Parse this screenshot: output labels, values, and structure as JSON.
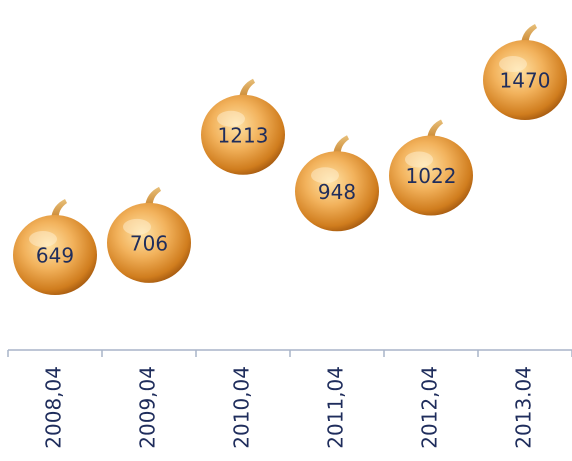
{
  "chart_data": {
    "type": "pictograph",
    "categories": [
      "2008,04",
      "2009,04",
      "2010,04",
      "2011,04",
      "2012,04",
      "2013.04"
    ],
    "values": [
      649,
      706,
      1213,
      948,
      1022,
      1470
    ]
  }
}
